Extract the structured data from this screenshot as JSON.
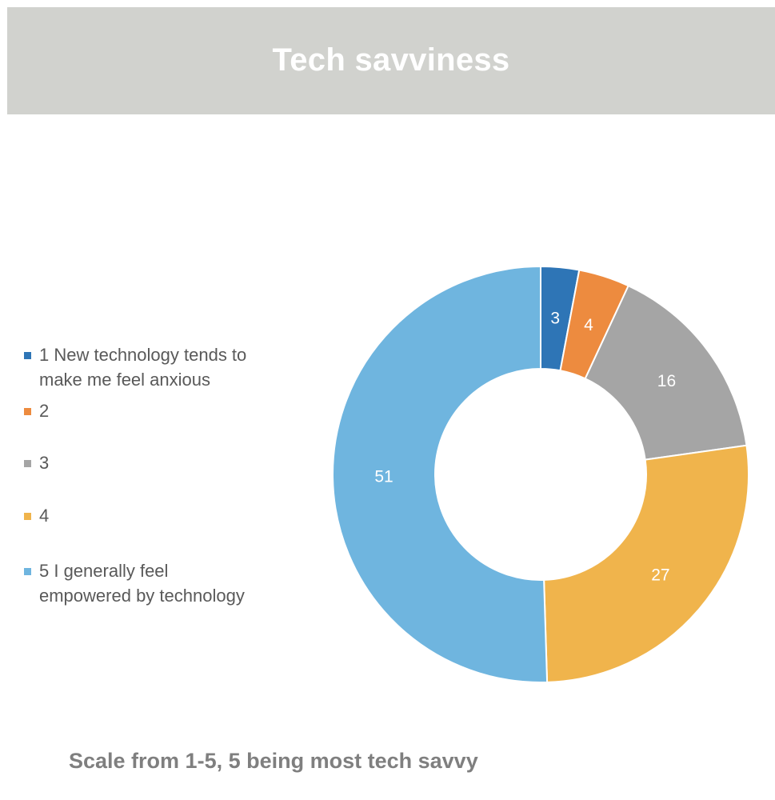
{
  "title": "Tech savviness",
  "footnote": "Scale from 1-5, 5 being most tech savvy",
  "chart_data": {
    "type": "pie",
    "variant": "donut",
    "title": "Tech savviness",
    "categories": [
      "1 New technology tends to make me feel anxious",
      "2",
      "3",
      "4",
      "5 I generally feel empowered by technology"
    ],
    "values": [
      3,
      4,
      16,
      27,
      51
    ],
    "data_labels": [
      "3",
      "4",
      "16",
      "27",
      "51"
    ],
    "colors": [
      "#2e75b6",
      "#ed8b3f",
      "#a5a5a5",
      "#f0b44c",
      "#6fb5df"
    ],
    "legend": {
      "placement": "left",
      "items": [
        {
          "line1": "1 New technology tends to",
          "line2": "make me feel anxious",
          "color": "#2e75b6"
        },
        {
          "line1": "2",
          "line2": "",
          "color": "#ed8b3f"
        },
        {
          "line1": "3",
          "line2": "",
          "color": "#a5a5a5"
        },
        {
          "line1": "4",
          "line2": "",
          "color": "#f0b44c"
        },
        {
          "line1": "5 I generally feel",
          "line2": "empowered by technology",
          "color": "#6fb5df"
        }
      ]
    }
  }
}
